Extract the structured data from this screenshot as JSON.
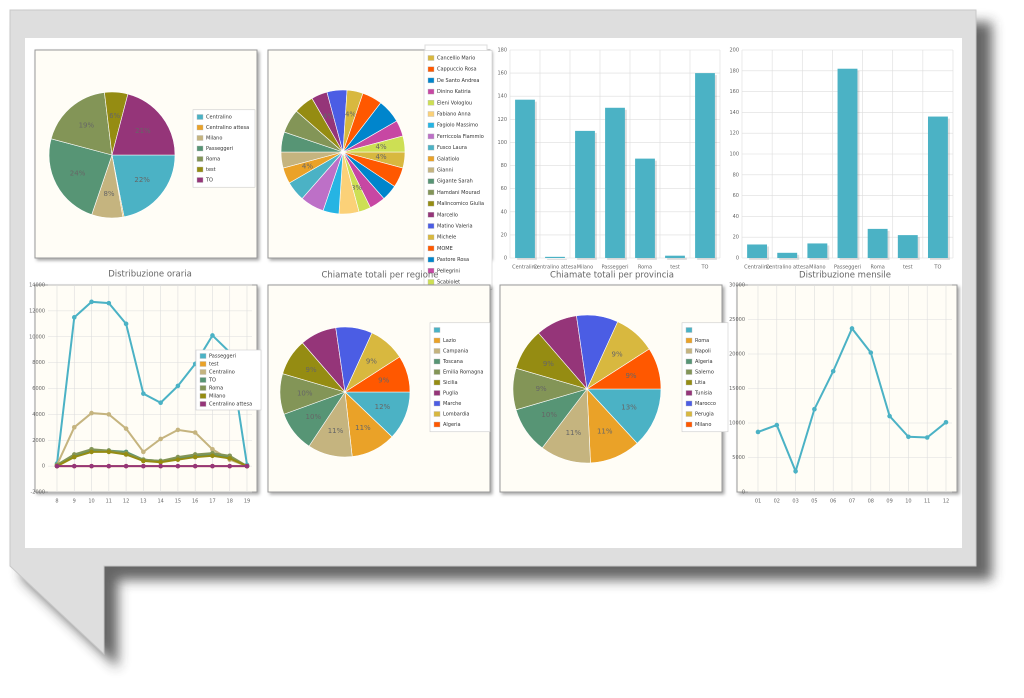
{
  "chart_data": [
    {
      "type": "pie",
      "categories": [
        "Centralino",
        "Centralino attesa",
        "Milano",
        "Passeggeri",
        "Roma",
        "test",
        "TO"
      ],
      "values": [
        22,
        0.3,
        8,
        24,
        19,
        6,
        21
      ],
      "value_labels": [
        "22%",
        null,
        "8%",
        "24%",
        "19%",
        "6%",
        "21%"
      ],
      "colors": [
        "#4bb2c5",
        "#eaa228",
        "#c5b47f",
        "#579575",
        "#839557",
        "#958c12",
        "#953579"
      ]
    },
    {
      "type": "pie",
      "categories": [
        "Cancellio Mario",
        "Cappuccio Rosa",
        "De Santo Andrea",
        "Dinino Katiria",
        "Eleni Vologlou",
        "Fabiano Anna",
        "Fagiolo Massimo",
        "Ferriccola Fiammio",
        "Fusco Laura",
        "Galatiolo",
        "Gianni",
        "Gigante Sarah",
        "Hamdani Mourad",
        "Malincomico Giulia",
        "Marcello",
        "Matino Valeria",
        "Michele",
        "MOME",
        "Pastore Rosa",
        "Pellegrini",
        "Scabiolet"
      ],
      "values": [
        4,
        5,
        4,
        4,
        3,
        5,
        4,
        6,
        5,
        4,
        4,
        5,
        6,
        5,
        4,
        5,
        4,
        5,
        6,
        4,
        4
      ],
      "value_labels": [
        "4%",
        null,
        null,
        null,
        "3%",
        null,
        null,
        null,
        null,
        "4%",
        null,
        null,
        null,
        null,
        "4%",
        null,
        "4%",
        null,
        null,
        null,
        "4%"
      ],
      "colors": [
        "#d8b83f",
        "#ff5800",
        "#0085cc",
        "#c747a3",
        "#cddf54",
        "#fbd178",
        "#26b4e3",
        "#bd70c7",
        "#4bb2c5",
        "#eaa228",
        "#c5b47f",
        "#579575",
        "#839557",
        "#958c12",
        "#953579",
        "#4b5de4",
        "#d8b83f",
        "#ff5800",
        "#0085cc",
        "#c747a3",
        "#cddf54"
      ]
    },
    {
      "type": "bar",
      "categories": [
        "Centralino",
        "Centralino attesa",
        "Milano",
        "Passeggeri",
        "Roma",
        "test",
        "TO"
      ],
      "values": [
        137,
        1,
        110,
        130,
        86,
        2,
        160
      ],
      "color": "#4bb2c5",
      "ylim": [
        0,
        180
      ],
      "yticks": [
        0,
        20,
        40,
        60,
        80,
        100,
        120,
        140,
        160,
        180
      ],
      "grid": true
    },
    {
      "type": "bar",
      "categories": [
        "Centralino",
        "Centralino attesa",
        "Milano",
        "Passeggeri",
        "Roma",
        "test",
        "TO"
      ],
      "values": [
        13,
        5,
        14,
        182,
        28,
        22,
        136
      ],
      "color": "#4bb2c5",
      "ylim": [
        0,
        200
      ],
      "yticks": [
        0,
        20,
        40,
        60,
        80,
        100,
        120,
        140,
        160,
        180,
        200
      ],
      "grid": true
    },
    {
      "type": "line",
      "title": "Distribuzione oraria",
      "categories": [
        "8",
        "9",
        "10",
        "11",
        "12",
        "13",
        "14",
        "15",
        "16",
        "17",
        "18",
        "19"
      ],
      "ylim": [
        -2000,
        14000
      ],
      "yticks": [
        -2000,
        0,
        2000,
        4000,
        6000,
        8000,
        10000,
        12000,
        14000
      ],
      "grid": true,
      "series": [
        {
          "name": "Passeggeri",
          "color": "#4bb2c5",
          "values": [
            200,
            11500,
            12700,
            12600,
            11000,
            5600,
            4900,
            6200,
            7900,
            10100,
            8800,
            100
          ]
        },
        {
          "name": "test",
          "color": "#eaa228",
          "values": [
            0,
            0,
            0,
            0,
            0,
            0,
            0,
            0,
            0,
            0,
            0,
            0
          ]
        },
        {
          "name": "Centralino",
          "color": "#c5b47f",
          "values": [
            100,
            3000,
            4100,
            4000,
            2900,
            1100,
            2100,
            2800,
            2600,
            1300,
            500,
            0
          ]
        },
        {
          "name": "TO",
          "color": "#579575",
          "values": [
            0,
            800,
            1200,
            1200,
            1100,
            500,
            400,
            600,
            800,
            900,
            700,
            0
          ]
        },
        {
          "name": "Roma",
          "color": "#839557",
          "values": [
            100,
            900,
            1300,
            1200,
            1000,
            500,
            400,
            700,
            900,
            1000,
            800,
            0
          ]
        },
        {
          "name": "Milano",
          "color": "#958c12",
          "values": [
            0,
            700,
            1100,
            1100,
            900,
            400,
            300,
            500,
            700,
            800,
            600,
            0
          ]
        },
        {
          "name": "Centralino attesa",
          "color": "#953579",
          "values": [
            0,
            0,
            0,
            0,
            0,
            0,
            0,
            0,
            0,
            0,
            0,
            0
          ]
        }
      ]
    },
    {
      "type": "pie",
      "title": "Chiamate totali per regione",
      "categories": [
        null,
        "Lazio",
        "Campania",
        "Toscana",
        "Emilia Romagna",
        "Sicilia",
        "Puglia",
        "Marche",
        "Lombardia",
        "Algeria"
      ],
      "values": [
        12,
        11,
        11,
        10,
        10,
        9,
        9,
        9,
        9,
        9
      ],
      "value_labels": [
        "12%",
        "11%",
        "11%",
        "10%",
        "10%",
        "9%",
        null,
        null,
        "9%",
        "9%"
      ],
      "colors": [
        "#4bb2c5",
        "#eaa228",
        "#c5b47f",
        "#579575",
        "#839557",
        "#958c12",
        "#953579",
        "#4b5de4",
        "#d8b83f",
        "#ff5800"
      ]
    },
    {
      "type": "pie",
      "title": "Chiamate totali per provincia",
      "categories": [
        null,
        "Roma",
        "Napoli",
        "Algeria",
        "Salerno",
        "Litia",
        "Tunisia",
        "Marocco",
        "Perugia",
        "Milano"
      ],
      "values": [
        13,
        11,
        11,
        10,
        9,
        9,
        9,
        9,
        9,
        9
      ],
      "value_labels": [
        "13%",
        "11%",
        "11%",
        "10%",
        "9%",
        "9%",
        null,
        null,
        "9%",
        "9%"
      ],
      "colors": [
        "#4bb2c5",
        "#eaa228",
        "#c5b47f",
        "#579575",
        "#839557",
        "#958c12",
        "#953579",
        "#4b5de4",
        "#d8b83f",
        "#ff5800"
      ]
    },
    {
      "type": "line",
      "title": "Distribuzione mensile",
      "categories": [
        "01",
        "02",
        "03",
        "05",
        "06",
        "07",
        "08",
        "09",
        "10",
        "11",
        "12"
      ],
      "ylim": [
        0,
        30000
      ],
      "yticks": [
        0,
        5000,
        10000,
        15000,
        20000,
        25000,
        30000
      ],
      "grid": true,
      "series": [
        {
          "color": "#4bb2c5",
          "values": [
            8700,
            9700,
            3000,
            12000,
            17500,
            23700,
            20200,
            11000,
            8000,
            7900,
            10100
          ]
        }
      ]
    }
  ]
}
